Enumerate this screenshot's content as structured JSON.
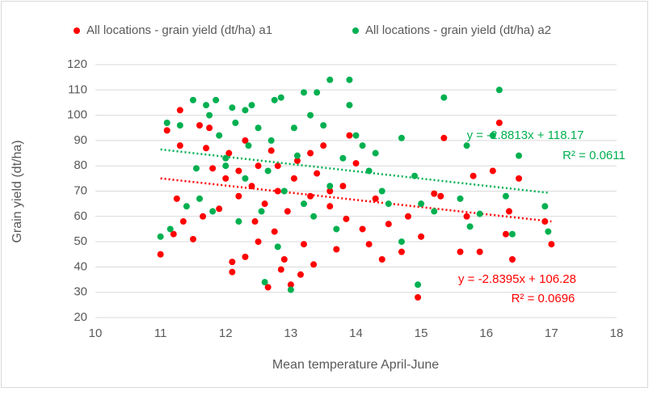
{
  "chart_data": {
    "type": "scatter",
    "xlabel": "Mean temperature April-June",
    "ylabel": "Grain yield (dt/ha)",
    "xlim": [
      10,
      18
    ],
    "xticks": [
      10,
      11,
      12,
      13,
      14,
      15,
      16,
      17,
      18
    ],
    "ylim": [
      20,
      120
    ],
    "yticks": [
      20,
      30,
      40,
      50,
      60,
      70,
      80,
      90,
      100,
      110,
      120
    ],
    "grid": true,
    "legend": "top",
    "series": [
      {
        "name": "All locations - grain yield (dt/ha) a1",
        "color": "#ff0000",
        "trendline": {
          "slope": -2.8395,
          "intercept": 106.28
        },
        "annotations": [
          "y = -2.8395x + 106.28",
          "R² = 0.0696"
        ],
        "x": [
          11.0,
          11.1,
          11.2,
          11.25,
          11.3,
          11.3,
          11.35,
          11.5,
          11.6,
          11.65,
          11.7,
          11.75,
          11.8,
          11.9,
          12.0,
          12.05,
          12.1,
          12.1,
          12.2,
          12.3,
          12.3,
          12.4,
          12.45,
          12.5,
          12.5,
          12.6,
          12.65,
          12.7,
          12.75,
          12.8,
          12.85,
          12.9,
          12.95,
          13.0,
          13.05,
          13.1,
          13.15,
          13.2,
          13.3,
          13.35,
          13.4,
          13.5,
          13.6,
          13.7,
          13.8,
          13.85,
          13.9,
          14.0,
          14.1,
          14.2,
          14.3,
          14.4,
          14.5,
          14.7,
          14.8,
          14.95,
          15.0,
          15.2,
          15.3,
          15.35,
          15.6,
          15.7,
          15.8,
          15.9,
          16.1,
          16.2,
          16.3,
          16.35,
          16.4,
          16.5,
          16.9,
          17.0,
          13.6,
          12.2,
          12.8,
          13.3
        ],
        "values": [
          45,
          94,
          53,
          67,
          88,
          102,
          58,
          51,
          96,
          60,
          87,
          95,
          79,
          63,
          75,
          85,
          38,
          42,
          68,
          44,
          90,
          72,
          58,
          80,
          50,
          65,
          32,
          86,
          54,
          70,
          39,
          43,
          62,
          33,
          75,
          82,
          37,
          49,
          68,
          41,
          77,
          88,
          64,
          47,
          72,
          59,
          92,
          81,
          55,
          49,
          67,
          43,
          57,
          46,
          60,
          28,
          52,
          69,
          68,
          91,
          46,
          60,
          76,
          46,
          78,
          97,
          53,
          62,
          43,
          75,
          58,
          49,
          70,
          78,
          80,
          85
        ]
      },
      {
        "name": "All locations - grain yield (dt/ha) a2",
        "color": "#00b050",
        "trendline": {
          "slope": -2.8813,
          "intercept": 118.17
        },
        "annotations": [
          "y = -2.8813x + 118.17",
          "R² = 0.0611"
        ],
        "x": [
          11.0,
          11.1,
          11.15,
          11.3,
          11.4,
          11.5,
          11.55,
          11.6,
          11.7,
          11.75,
          11.8,
          11.85,
          11.9,
          12.0,
          12.1,
          12.15,
          12.2,
          12.3,
          12.35,
          12.4,
          12.5,
          12.55,
          12.6,
          12.65,
          12.7,
          12.75,
          12.8,
          12.85,
          12.9,
          13.0,
          13.05,
          13.1,
          13.2,
          13.3,
          13.35,
          13.4,
          13.5,
          13.6,
          13.7,
          13.8,
          13.9,
          13.9,
          14.0,
          14.1,
          14.2,
          14.3,
          14.4,
          14.5,
          14.7,
          14.7,
          14.9,
          14.95,
          15.0,
          15.2,
          15.35,
          15.6,
          15.7,
          15.75,
          15.9,
          16.1,
          16.2,
          16.3,
          16.4,
          16.5,
          16.9,
          16.95,
          12.3,
          13.2,
          13.6,
          12.0
        ],
        "values": [
          52,
          97,
          55,
          96,
          64,
          106,
          79,
          67,
          104,
          100,
          62,
          106,
          92,
          80,
          103,
          97,
          58,
          102,
          88,
          104,
          95,
          62,
          34,
          78,
          90,
          106,
          48,
          107,
          70,
          31,
          95,
          84,
          109,
          100,
          60,
          109,
          96,
          114,
          55,
          83,
          114,
          104,
          92,
          88,
          78,
          85,
          70,
          65,
          91,
          50,
          76,
          33,
          65,
          62,
          107,
          67,
          88,
          56,
          61,
          92,
          110,
          68,
          53,
          84,
          64,
          54,
          75,
          65,
          72,
          83
        ]
      }
    ]
  }
}
